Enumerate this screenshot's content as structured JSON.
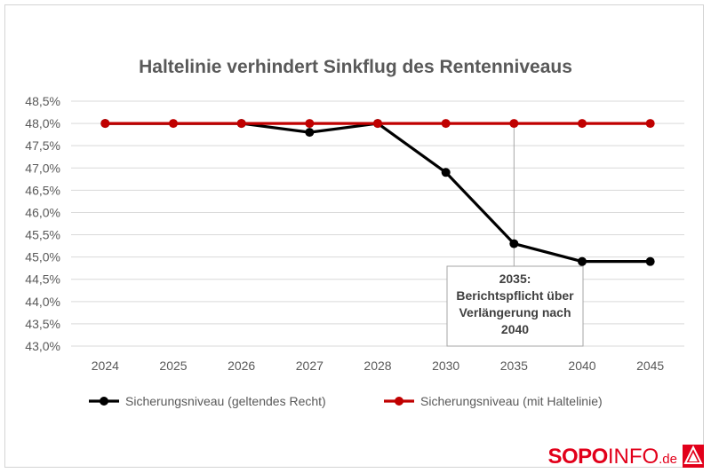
{
  "chart_data": {
    "type": "line",
    "title": "Haltelinie verhindert Sinkflug des Rentenniveaus",
    "categories": [
      "2024",
      "2025",
      "2026",
      "2027",
      "2028",
      "2030",
      "2035",
      "2040",
      "2045"
    ],
    "ylim": [
      43.0,
      48.5
    ],
    "y_ticks": [
      "48,5%",
      "48,0%",
      "47,5%",
      "47,0%",
      "46,5%",
      "46,0%",
      "45,5%",
      "45,0%",
      "44,5%",
      "44,0%",
      "43,5%",
      "43,0%"
    ],
    "grid": true,
    "legend_position": "bottom",
    "series": [
      {
        "name": "Sicherungsniveau (geltendes Recht)",
        "color": "#000000",
        "values": [
          48.0,
          null,
          48.0,
          47.8,
          48.0,
          46.9,
          45.3,
          44.9,
          44.9
        ]
      },
      {
        "name": "Sicherungsniveau (mit Haltelinie)",
        "color": "#c00000",
        "values": [
          48.0,
          48.0,
          48.0,
          48.0,
          48.0,
          48.0,
          48.0,
          48.0,
          48.0
        ]
      }
    ],
    "annotation": {
      "category": "2035",
      "lines": [
        "2035:",
        "Berichtspflicht über",
        "Verlängerung nach",
        "2040"
      ]
    }
  },
  "logo": {
    "sopo": "SOPO",
    "info": "INFO",
    "de": ".de",
    "icon": "ig-metall-logo-icon"
  }
}
